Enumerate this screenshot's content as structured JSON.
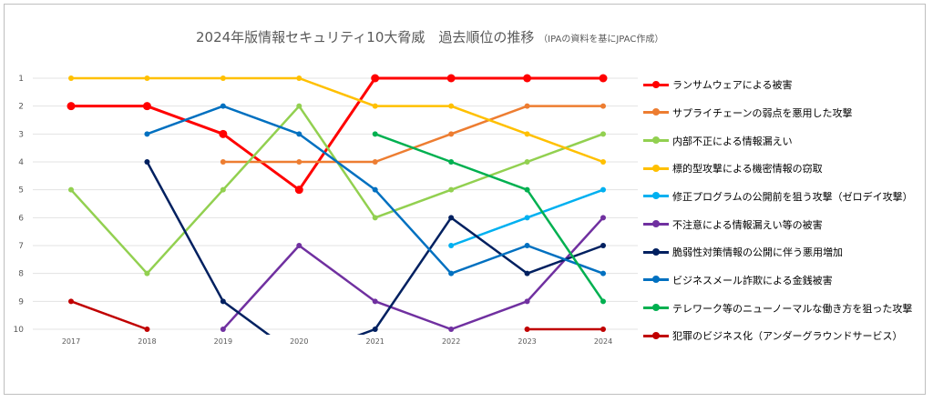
{
  "chart_data": {
    "type": "line",
    "title": "2024年版情報セキュリティ10大脅威　過去順位の推移",
    "subtitle": "（IPAの資料を基にJPAC作成）",
    "x": [
      "2017",
      "2018",
      "2019",
      "2020",
      "2021",
      "2022",
      "2023",
      "2024"
    ],
    "y_ticks": [
      "1",
      "2",
      "3",
      "4",
      "5",
      "6",
      "7",
      "8",
      "9",
      "10"
    ],
    "ylim": [
      1,
      10
    ],
    "y_inverted": true,
    "grid": true,
    "legend_position": "right",
    "series": [
      {
        "name": "ランサムウェアによる被害",
        "color": "#ff0000",
        "values": [
          2,
          2,
          3,
          5,
          1,
          1,
          1,
          1
        ],
        "large_markers": true
      },
      {
        "name": "サプライチェーンの弱点を悪用した攻撃",
        "color": "#ed7d31",
        "values": [
          null,
          null,
          4,
          4,
          4,
          3,
          2,
          2
        ]
      },
      {
        "name": "内部不正による情報漏えい",
        "color": "#92d050",
        "values": [
          5,
          8,
          5,
          2,
          6,
          5,
          4,
          3
        ]
      },
      {
        "name": "標的型攻撃による機密情報の窃取",
        "color": "#ffc000",
        "values": [
          1,
          1,
          1,
          1,
          2,
          2,
          3,
          4
        ]
      },
      {
        "name": "修正プログラムの公開前を狙う攻撃（ゼロデイ攻撃）",
        "color": "#00b0f0",
        "values": [
          null,
          null,
          null,
          null,
          null,
          7,
          6,
          5
        ]
      },
      {
        "name": "不注意による情報漏えい等の被害",
        "color": "#7030a0",
        "values": [
          null,
          null,
          10,
          7,
          9,
          10,
          9,
          6
        ]
      },
      {
        "name": "脆弱性対策情報の公開に伴う悪用増加",
        "color": "#002060",
        "values": [
          null,
          4,
          9,
          11,
          10,
          6,
          8,
          7
        ]
      },
      {
        "name": "ビジネスメール詐欺による金銭被害",
        "color": "#0070c0",
        "values": [
          null,
          3,
          2,
          3,
          5,
          8,
          7,
          8
        ]
      },
      {
        "name": "テレワーク等のニューノーマルな働き方を狙った攻撃",
        "color": "#00b050",
        "values": [
          null,
          null,
          null,
          null,
          3,
          4,
          5,
          9
        ]
      },
      {
        "name": "犯罪のビジネス化（アンダーグラウンドサービス）",
        "color": "#c00000",
        "values": [
          9,
          10,
          null,
          null,
          null,
          null,
          10,
          10
        ]
      }
    ]
  }
}
